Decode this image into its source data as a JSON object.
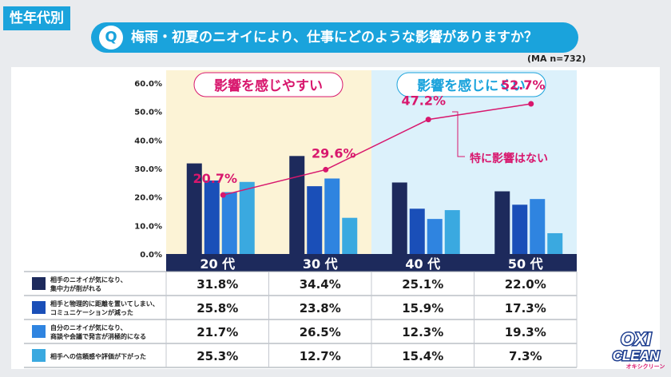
{
  "tag": "性年代別",
  "question": {
    "badge": "Q",
    "text": "梅雨・初夏のニオイにより、仕事にどのような影響がありますか？"
  },
  "sample": "(MA n=732)",
  "zones": {
    "left": "影響を感じやすい",
    "right": "影響を感じにくい"
  },
  "brand": {
    "line1": "OXI",
    "line2": "CLEAN",
    "kana": "オキシクリーン"
  },
  "colors": {
    "navy": "#1d2a5c",
    "blue": "#1a4fb8",
    "mid": "#2f84e0",
    "light": "#3aa9e0",
    "line": "#d8176d",
    "zoneWarm": "#fcf3d6",
    "zoneCool": "#dcf1fb",
    "header": "#1d2a5c"
  },
  "chart_data": {
    "type": "bar",
    "categories": [
      "20 代",
      "30 代",
      "40 代",
      "50 代"
    ],
    "ylim": [
      0,
      60
    ],
    "yticks": [
      "0.0%",
      "10.0%",
      "20.0%",
      "30.0%",
      "40.0%",
      "50.0%",
      "60.0%"
    ],
    "series": [
      {
        "name": "相手のニオイが気になり、集中力が削がれる",
        "lines": [
          "相手のニオイが気になり、",
          "集中力が削がれる"
        ],
        "values": [
          31.8,
          34.4,
          25.1,
          22.0
        ],
        "labels": [
          "31.8%",
          "34.4%",
          "25.1%",
          "22.0%"
        ]
      },
      {
        "name": "相手と物理的に距離を置いてしまい、コミュニケーションが減った",
        "lines": [
          "相手と物理的に距離を置いてしまい、",
          "コミュニケーションが減った"
        ],
        "values": [
          25.8,
          23.8,
          15.9,
          17.3
        ],
        "labels": [
          "25.8%",
          "23.8%",
          "15.9%",
          "17.3%"
        ]
      },
      {
        "name": "自分のニオイが気になり、商談や会議で発言が消極的になる",
        "lines": [
          "自分のニオイが気になり、",
          "商談や会議で発言が消極的になる"
        ],
        "values": [
          21.7,
          26.5,
          12.3,
          19.3
        ],
        "labels": [
          "21.7%",
          "26.5%",
          "12.3%",
          "19.3%"
        ]
      },
      {
        "name": "相手への信頼感や評価が下がった",
        "lines": [
          "相手への信頼感や評価が下がった"
        ],
        "values": [
          25.3,
          12.7,
          15.4,
          7.3
        ],
        "labels": [
          "25.3%",
          "12.7%",
          "15.4%",
          "7.3%"
        ]
      }
    ],
    "line": {
      "name": "特に影響はない",
      "values": [
        20.7,
        29.6,
        47.2,
        52.7
      ],
      "labels": [
        "20.7%",
        "29.6%",
        "47.2%",
        "52.7%"
      ]
    }
  }
}
